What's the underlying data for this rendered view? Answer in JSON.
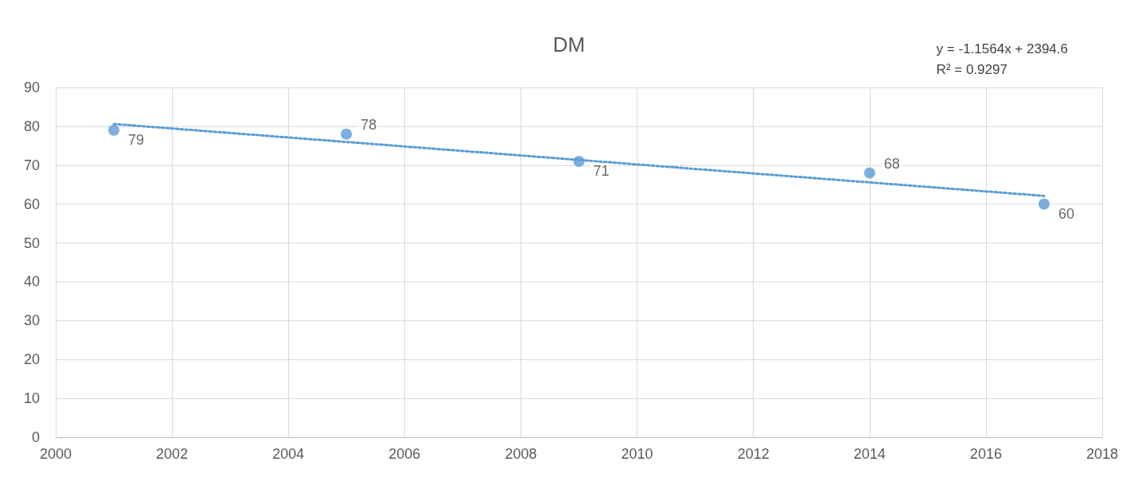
{
  "chart_data": {
    "type": "scatter",
    "title": "DM",
    "x": [
      2001,
      2005,
      2009,
      2014,
      2017
    ],
    "series": [
      {
        "color": "#5b9bd5",
        "values": [
          79,
          78,
          71,
          68,
          60
        ],
        "marker": "circle",
        "data_labels": true
      },
      {
        "type": "line",
        "color": "#5b9bd5",
        "x": [
          2001,
          2017
        ],
        "values": [
          80.6,
          62.1
        ],
        "marker": "none",
        "line_style": "dotted"
      }
    ],
    "xlim": [
      2000,
      2018
    ],
    "xticks": [
      2000,
      2002,
      2004,
      2006,
      2008,
      2010,
      2012,
      2014,
      2016,
      2018
    ],
    "ylim": [
      0,
      90
    ],
    "yticks": [
      0,
      10,
      20,
      30,
      40,
      50,
      60,
      70,
      80,
      90
    ],
    "grid": true,
    "annotations": [
      "y = -1.1564x + 2394.6",
      "R² = 0.9297"
    ]
  }
}
